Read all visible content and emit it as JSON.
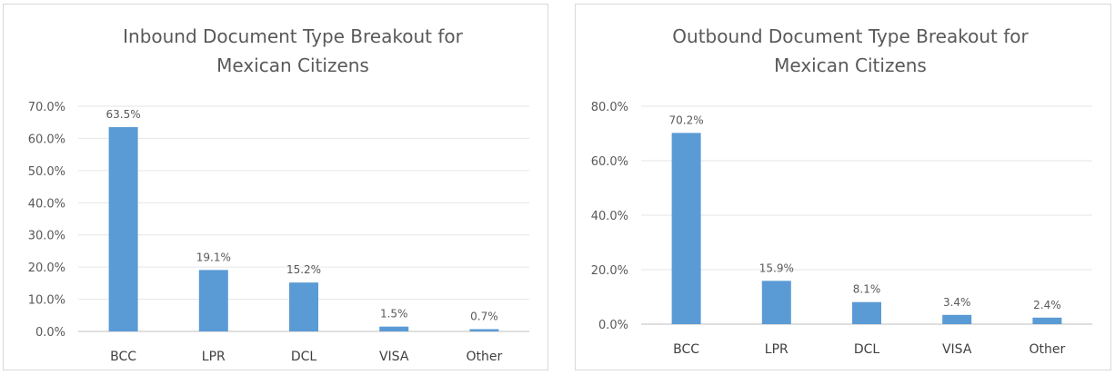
{
  "chart_data": [
    {
      "type": "bar",
      "title_lines": [
        "Inbound Document Type Breakout for",
        "Mexican Citizens"
      ],
      "categories": [
        "BCC",
        "LPR",
        "DCL",
        "VISA",
        "Other"
      ],
      "values": [
        63.5,
        19.1,
        15.2,
        1.5,
        0.7
      ],
      "value_labels": [
        "63.5%",
        "19.1%",
        "15.2%",
        "1.5%",
        "0.7%"
      ],
      "ylim": [
        0,
        70
      ],
      "yticks": [
        0,
        10,
        20,
        30,
        40,
        50,
        60,
        70
      ],
      "ytick_labels": [
        "0.0%",
        "10.0%",
        "20.0%",
        "30.0%",
        "40.0%",
        "50.0%",
        "60.0%",
        "70.0%"
      ],
      "grid": true,
      "legend": false,
      "bar_color": "#5b9bd5"
    },
    {
      "type": "bar",
      "title_lines": [
        "Outbound Document Type Breakout for",
        "Mexican Citizens"
      ],
      "categories": [
        "BCC",
        "LPR",
        "DCL",
        "VISA",
        "Other"
      ],
      "values": [
        70.2,
        15.9,
        8.1,
        3.4,
        2.4
      ],
      "value_labels": [
        "70.2%",
        "15.9%",
        "8.1%",
        "3.4%",
        "2.4%"
      ],
      "ylim": [
        0,
        80
      ],
      "yticks": [
        0,
        20,
        40,
        60,
        80
      ],
      "ytick_labels": [
        "0.0%",
        "20.0%",
        "40.0%",
        "60.0%",
        "80.0%"
      ],
      "grid": true,
      "legend": false,
      "bar_color": "#5b9bd5"
    }
  ]
}
